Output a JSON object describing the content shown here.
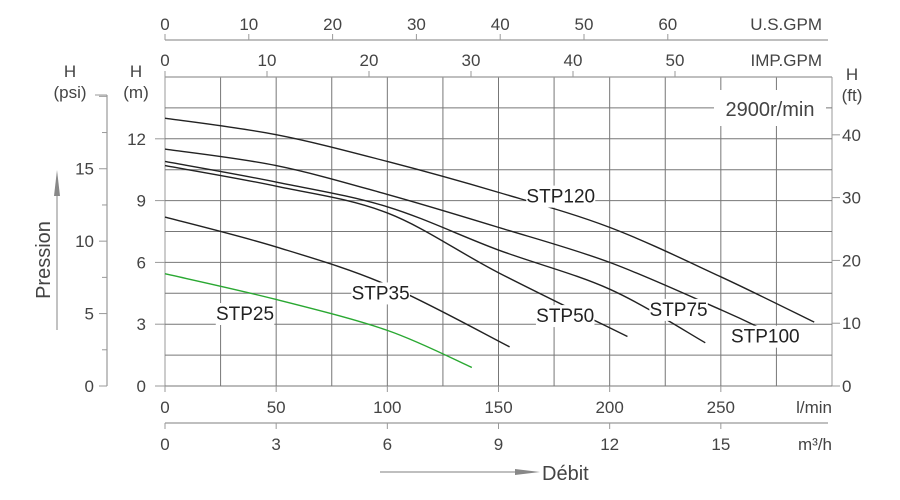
{
  "chart_data": {
    "type": "line",
    "title": "",
    "speed_label": "2900r/min",
    "xlabel": "Débit",
    "ylabel": "Pression",
    "x_unit_primary": "l/min",
    "xlim": [
      0,
      300
    ],
    "ylim_m": [
      0,
      15
    ],
    "grid": true,
    "axes": {
      "us_gpm": {
        "label": "U.S.GPM",
        "ticks": [
          "0",
          "10",
          "20",
          "30",
          "40",
          "50",
          "60"
        ],
        "values": [
          0,
          10,
          20,
          30,
          40,
          50,
          60
        ]
      },
      "imp_gpm": {
        "label": "IMP.GPM",
        "ticks": [
          "0",
          "10",
          "20",
          "30",
          "40",
          "50"
        ],
        "values": [
          0,
          10,
          20,
          30,
          40,
          50
        ]
      },
      "l_min": {
        "label": "l/min",
        "ticks": [
          "0",
          "50",
          "100",
          "150",
          "200",
          "250"
        ],
        "values": [
          0,
          50,
          100,
          150,
          200,
          250
        ]
      },
      "m3_h": {
        "label": "m³/h",
        "ticks": [
          "0",
          "3",
          "6",
          "9",
          "12",
          "15"
        ],
        "values": [
          0,
          3,
          6,
          9,
          12,
          15
        ]
      },
      "h_psi": {
        "label_top": "H",
        "label_unit": "(psi)",
        "ticks": [
          "0",
          "5",
          "10",
          "15"
        ],
        "values": [
          0,
          5,
          10,
          15
        ]
      },
      "h_m": {
        "label_top": "H",
        "label_unit": "(m)",
        "ticks": [
          "0",
          "3",
          "6",
          "9",
          "12"
        ],
        "values": [
          0,
          3,
          6,
          9,
          12
        ]
      },
      "h_ft": {
        "label_top": "H",
        "label_unit": "(ft)",
        "ticks": [
          "0",
          "10",
          "20",
          "30",
          "40"
        ],
        "values": [
          0,
          10,
          20,
          30,
          40
        ]
      }
    },
    "series": [
      {
        "name": "STP120",
        "color": "#222222",
        "x": [
          0,
          50,
          100,
          150,
          200,
          250,
          292
        ],
        "y": [
          13.0,
          12.2,
          10.9,
          9.4,
          7.7,
          5.3,
          3.1
        ],
        "label_pos": [
          178,
          9.0
        ]
      },
      {
        "name": "STP100",
        "color": "#222222",
        "x": [
          0,
          50,
          100,
          150,
          200,
          250,
          270
        ],
        "y": [
          11.5,
          10.7,
          9.3,
          7.7,
          6.0,
          3.7,
          2.7
        ],
        "label_pos": [
          270,
          2.2
        ]
      },
      {
        "name": "STP75",
        "color": "#222222",
        "x": [
          0,
          50,
          100,
          150,
          200,
          243
        ],
        "y": [
          10.9,
          9.9,
          8.7,
          6.6,
          4.7,
          2.1
        ],
        "label_pos": [
          231,
          3.5
        ]
      },
      {
        "name": "STP50",
        "color": "#222222",
        "x": [
          0,
          50,
          100,
          150,
          208
        ],
        "y": [
          10.7,
          9.7,
          8.4,
          5.5,
          2.4
        ],
        "label_pos": [
          180,
          3.2
        ]
      },
      {
        "name": "STP35",
        "color": "#222222",
        "x": [
          0,
          50,
          100,
          155
        ],
        "y": [
          8.2,
          6.75,
          4.9,
          1.9
        ],
        "label_pos": [
          97,
          4.3
        ]
      },
      {
        "name": "STP25",
        "color": "#2aa832",
        "x": [
          0,
          50,
          100,
          138
        ],
        "y": [
          5.45,
          4.2,
          2.7,
          0.9
        ],
        "label_pos": [
          36,
          3.3
        ]
      }
    ]
  }
}
